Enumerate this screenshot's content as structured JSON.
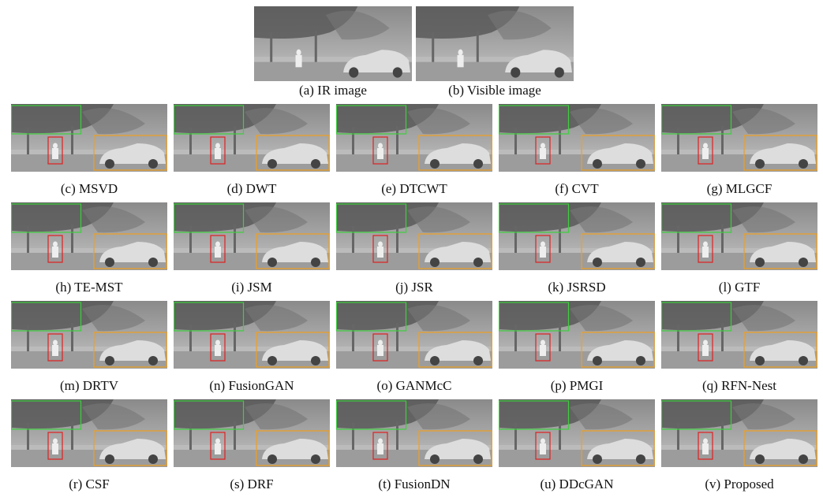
{
  "top_captions": [
    "(a)  IR image",
    "(b)  Visible image"
  ],
  "grid_captions": [
    "(c)  MSVD",
    "(d)  DWT",
    "(e)  DTCWT",
    "(f)  CVT",
    "(g)  MLGCF",
    "(h)  TE-MST",
    "(i)  JSM",
    "(j)  JSR",
    "(k)  JSRSD",
    "(l)  GTF",
    "(m)  DRTV",
    "(n)  FusionGAN",
    "(o)  GANMcC",
    "(p)  PMGI",
    "(q)  RFN-Nest",
    "(r)  CSF",
    "(s)  DRF",
    "(t)  FusionDN",
    "(u)  DDcGAN",
    "(v)  Proposed"
  ]
}
